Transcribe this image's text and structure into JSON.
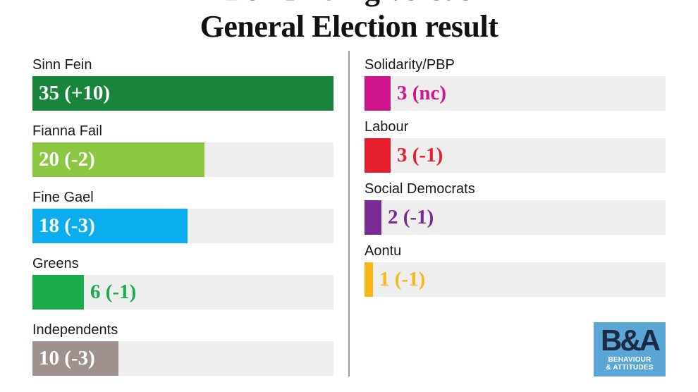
{
  "title_line1": "Poll finding versus",
  "title_line2": "General Election result",
  "chart_data": {
    "type": "bar",
    "title": "Poll finding versus General Election result",
    "xlim": [
      0,
      35
    ],
    "series_columns": [
      [
        {
          "party": "Sinn Fein",
          "value": 35,
          "label": "35 (+10)",
          "color": "#19853c",
          "text_color": "#ffffff"
        },
        {
          "party": "Fianna Fail",
          "value": 20,
          "label": "20 (-2)",
          "color": "#8dc641",
          "text_color": "#ffffff"
        },
        {
          "party": "Fine Gael",
          "value": 18,
          "label": "18 (-3)",
          "color": "#0aaeef",
          "text_color": "#ffffff"
        },
        {
          "party": "Greens",
          "value": 6,
          "label": "6 (-1)",
          "color": "#1aab4b",
          "text_color": "#1aab4b"
        },
        {
          "party": "Independents",
          "value": 10,
          "label": "10 (-3)",
          "color": "#9e918e",
          "text_color": "#ffffff"
        }
      ],
      [
        {
          "party": "Solidarity/PBP",
          "value": 3,
          "label": "3 (nc)",
          "color": "#d0158c",
          "text_color": "#d0158c"
        },
        {
          "party": "Labour",
          "value": 3,
          "label": "3 (-1)",
          "color": "#e41f2b",
          "text_color": "#e41f2b"
        },
        {
          "party": "Social Democrats",
          "value": 2,
          "label": "2 (-1)",
          "color": "#7c2a93",
          "text_color": "#7c2a93"
        },
        {
          "party": "Aontu",
          "value": 1,
          "label": "1 (-1)",
          "color": "#f6b717",
          "text_color": "#f6b717"
        }
      ]
    ]
  },
  "logo": {
    "mark": "B&A",
    "line1": "BEHAVIOUR",
    "line2": "& ATTITUDES"
  }
}
